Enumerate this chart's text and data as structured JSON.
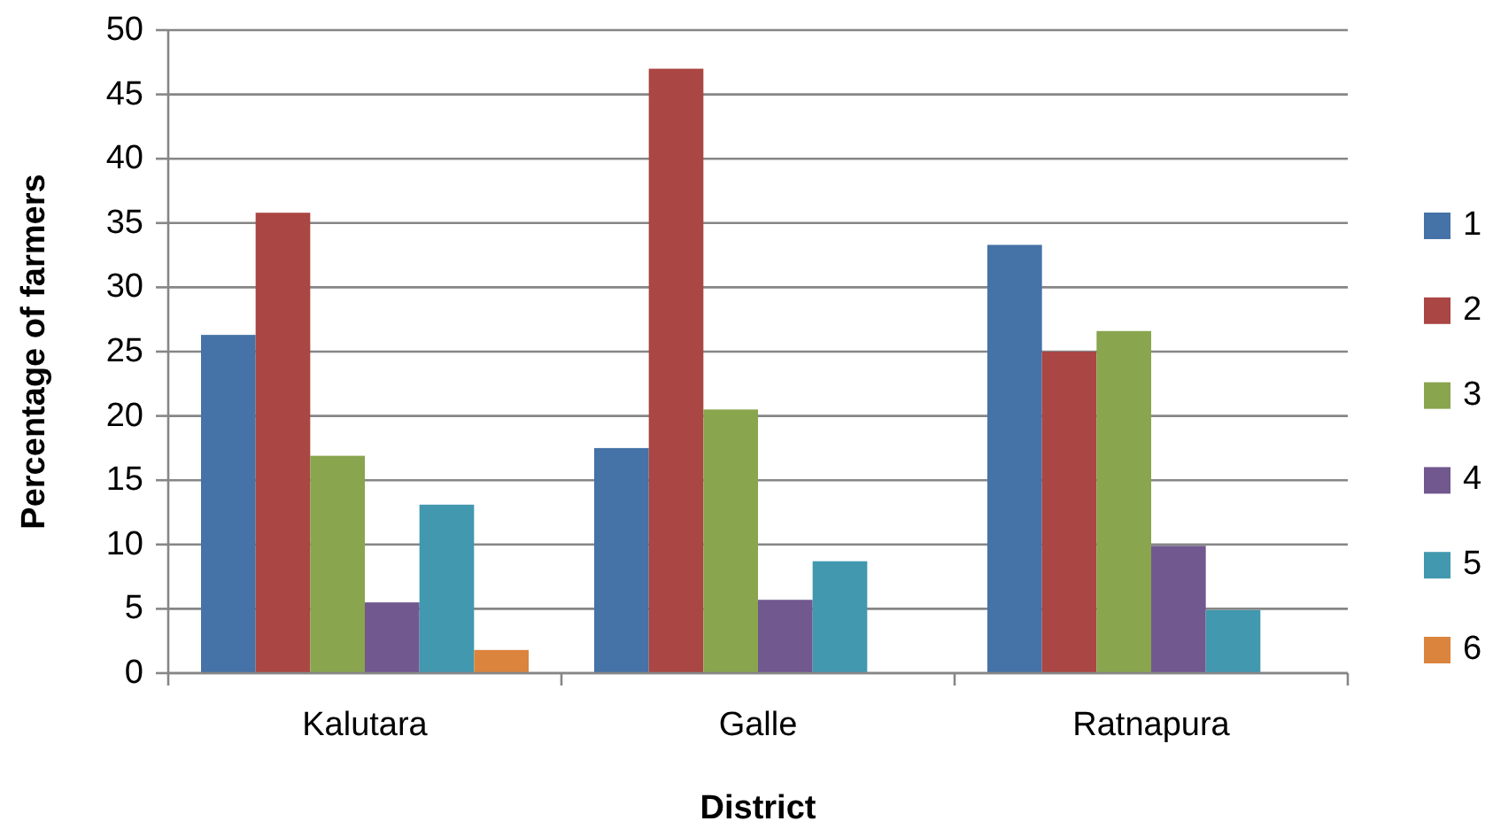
{
  "chart_data": {
    "type": "bar",
    "xlabel": "District",
    "ylabel": "Percentage of farmers",
    "categories": [
      "Kalutara",
      "Galle",
      "Ratnapura"
    ],
    "series": [
      {
        "name": "1",
        "color": "#4572a7",
        "values": [
          26.3,
          17.5,
          33.3
        ]
      },
      {
        "name": "2",
        "color": "#aa4643",
        "values": [
          35.8,
          47.0,
          25.0
        ]
      },
      {
        "name": "3",
        "color": "#89a54e",
        "values": [
          16.9,
          20.5,
          26.6
        ]
      },
      {
        "name": "4",
        "color": "#71588f",
        "values": [
          5.5,
          5.7,
          9.9
        ]
      },
      {
        "name": "5",
        "color": "#4198af",
        "values": [
          13.1,
          8.7,
          4.9
        ]
      },
      {
        "name": "6",
        "color": "#db843d",
        "values": [
          1.8,
          null,
          null
        ]
      }
    ],
    "ylim": [
      0,
      50
    ],
    "yticks": [
      0,
      5,
      10,
      15,
      20,
      25,
      30,
      35,
      40,
      45,
      50
    ],
    "grid": "y",
    "legend": "right"
  }
}
